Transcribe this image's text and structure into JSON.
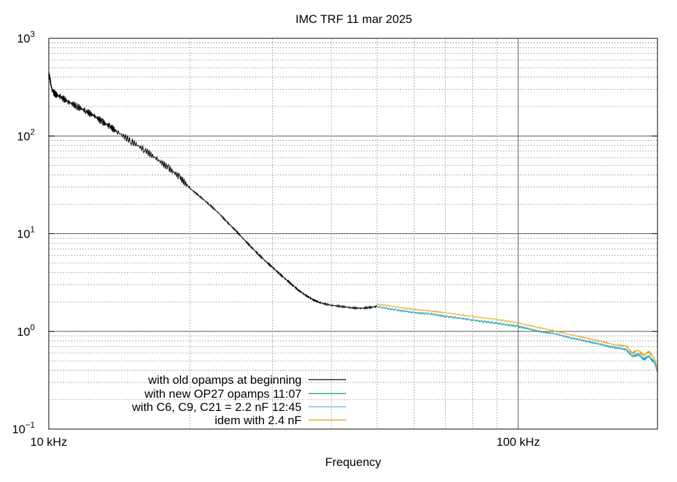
{
  "chart_data": {
    "type": "line",
    "title": "IMC TRF 11 mar 2025",
    "xlabel": "Frequency",
    "ylabel": "",
    "xscale": "log",
    "yscale": "log",
    "xlim": [
      10000,
      198000
    ],
    "ylim": [
      0.1,
      1000
    ],
    "x_ticks": [
      {
        "value": 10000,
        "label": "10 kHz"
      },
      {
        "value": 100000,
        "label": "100 kHz"
      }
    ],
    "y_ticks": [
      {
        "value": 0.1,
        "base": "10",
        "exp": "−1"
      },
      {
        "value": 1,
        "base": "10",
        "exp": "0"
      },
      {
        "value": 10,
        "base": "10",
        "exp": "1"
      },
      {
        "value": 100,
        "base": "10",
        "exp": "2"
      },
      {
        "value": 1000,
        "base": "10",
        "exp": "3"
      }
    ],
    "grid": true,
    "legend_position": "bottom-left",
    "series": [
      {
        "name": "with old opamps at beginning",
        "color": "#000000",
        "x": [
          10000,
          10150,
          10300,
          10600,
          11000,
          11500,
          12000,
          12500,
          13000,
          13500,
          14000,
          15000,
          16000,
          17000,
          18000,
          19000,
          20000,
          21000,
          22000,
          23000,
          24000,
          25000,
          26000,
          27000,
          28000,
          29000,
          30000,
          31000,
          32000,
          33000,
          34000,
          35000,
          36000,
          37000,
          38000,
          40000,
          42000,
          44000,
          46000,
          48000,
          50000
        ],
        "y": [
          450,
          300,
          270,
          250,
          225,
          200,
          180,
          160,
          140,
          125,
          110,
          88,
          72,
          58,
          47,
          38,
          29,
          24,
          19.8,
          16.3,
          13.1,
          10.8,
          8.8,
          7.3,
          6.1,
          5.2,
          4.5,
          3.9,
          3.4,
          3.0,
          2.65,
          2.4,
          2.2,
          2.05,
          1.95,
          1.85,
          1.8,
          1.75,
          1.72,
          1.75,
          1.8
        ]
      },
      {
        "name": "with new OP27 opamps 11:07",
        "color": "#009e73",
        "x": [
          50000,
          55000,
          60000,
          65000,
          70000,
          80000,
          90000,
          100000,
          110000,
          120000,
          130000,
          140000,
          150000,
          160000,
          170000,
          175000,
          180000,
          185000,
          190000,
          195000,
          198000
        ],
        "y": [
          1.78,
          1.65,
          1.55,
          1.5,
          1.42,
          1.3,
          1.2,
          1.12,
          1.0,
          0.94,
          0.85,
          0.79,
          0.73,
          0.68,
          0.65,
          0.55,
          0.58,
          0.52,
          0.55,
          0.48,
          0.38
        ]
      },
      {
        "name": "with C6, C9, C21 = 2.2 nF 12:45",
        "color": "#56b4e9",
        "x": [
          50000,
          55000,
          60000,
          65000,
          70000,
          80000,
          90000,
          100000,
          110000,
          120000,
          130000,
          140000,
          150000,
          160000,
          170000,
          175000,
          180000,
          185000,
          190000,
          195000,
          198000
        ],
        "y": [
          1.8,
          1.67,
          1.57,
          1.52,
          1.44,
          1.32,
          1.22,
          1.14,
          1.02,
          0.95,
          0.86,
          0.8,
          0.74,
          0.69,
          0.66,
          0.56,
          0.59,
          0.53,
          0.56,
          0.49,
          0.39
        ]
      },
      {
        "name": "idem with 2.4 nF",
        "color": "#e69f00",
        "x": [
          50000,
          55000,
          60000,
          65000,
          70000,
          80000,
          90000,
          100000,
          110000,
          120000,
          130000,
          140000,
          150000,
          160000,
          170000,
          175000,
          180000,
          185000,
          190000,
          195000,
          198000
        ],
        "y": [
          1.9,
          1.78,
          1.68,
          1.62,
          1.55,
          1.42,
          1.32,
          1.22,
          1.1,
          1.01,
          0.92,
          0.85,
          0.79,
          0.73,
          0.71,
          0.6,
          0.64,
          0.57,
          0.62,
          0.53,
          0.42
        ]
      }
    ]
  }
}
